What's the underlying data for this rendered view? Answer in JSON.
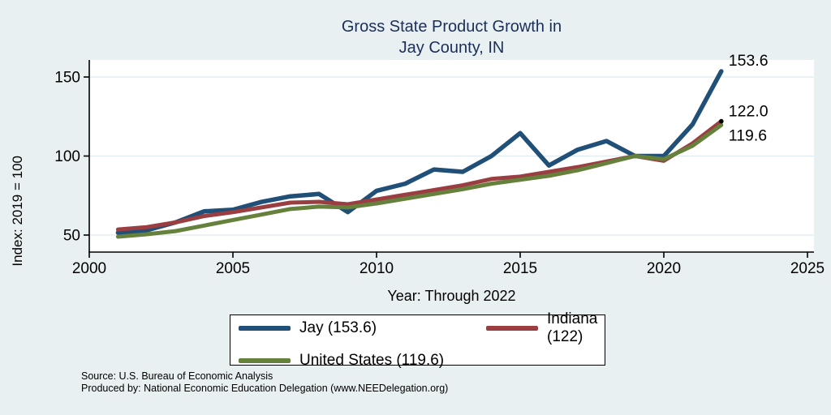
{
  "title": {
    "line1": "Gross State Product Growth in",
    "line2": "Jay County, IN"
  },
  "axes": {
    "x_label": "Year: Through 2022",
    "y_label": "Index: 2019 = 100",
    "x_ticks": [
      2000,
      2005,
      2010,
      2015,
      2020,
      2025
    ],
    "y_ticks": [
      50,
      100,
      150
    ]
  },
  "chart_data": {
    "type": "line",
    "title": "Gross State Product Growth in Jay County, IN",
    "xlabel": "Year: Through 2022",
    "ylabel": "Index: 2019 = 100",
    "xlim": [
      2000,
      2025
    ],
    "ylim": [
      39,
      161
    ],
    "grid": true,
    "legend_position": "bottom-center",
    "x": [
      2001,
      2002,
      2003,
      2004,
      2005,
      2006,
      2007,
      2008,
      2009,
      2010,
      2011,
      2012,
      2013,
      2014,
      2015,
      2016,
      2017,
      2018,
      2019,
      2020,
      2021,
      2022
    ],
    "series": [
      {
        "name": "Jay",
        "legend_label": "Jay  (153.6)",
        "color": "#204f77",
        "line_width": 5.5,
        "end_label": "153.6",
        "end_label_dy": -7,
        "end_marker": false,
        "values": [
          51.5,
          53,
          58,
          65,
          66,
          71,
          74.5,
          76,
          64.5,
          78,
          82.5,
          91.5,
          90,
          100,
          114.5,
          94,
          104,
          109.5,
          100,
          100,
          120,
          153.6
        ]
      },
      {
        "name": "Indiana",
        "legend_label": "Indiana (122)",
        "color": "#9a3e41",
        "line_width": 5,
        "end_label": "122.0",
        "end_label_dy": -6,
        "end_marker": true,
        "values": [
          53.5,
          55,
          58,
          62,
          64.5,
          67.5,
          70.5,
          71,
          69.5,
          72.5,
          75.5,
          78.5,
          81.5,
          85.5,
          87,
          90,
          93,
          96.5,
          100,
          97,
          108,
          122
        ]
      },
      {
        "name": "United States",
        "legend_label": "United States (119.6)",
        "color": "#66813c",
        "line_width": 5,
        "end_label": "119.6",
        "end_label_dy": 19,
        "end_marker": false,
        "values": [
          49,
          50.5,
          52.5,
          56,
          59.5,
          63,
          66.5,
          68,
          67.5,
          70,
          73,
          76,
          79,
          82.5,
          85,
          87.5,
          91,
          95.5,
          100,
          98,
          106.5,
          119.6
        ]
      }
    ]
  },
  "footer": {
    "source": "Source: U.S. Bureau of Economic Analysis",
    "produced_by": "Produced by: National Economic Education Delegation (www.NEEDelegation.org)"
  },
  "colors": {
    "background": "#e8f0f2",
    "plot_background": "#ffffff",
    "grid": "#dfebee",
    "axis": "#000000",
    "title_text": "#1c2e5a",
    "label_text": "#000000"
  }
}
